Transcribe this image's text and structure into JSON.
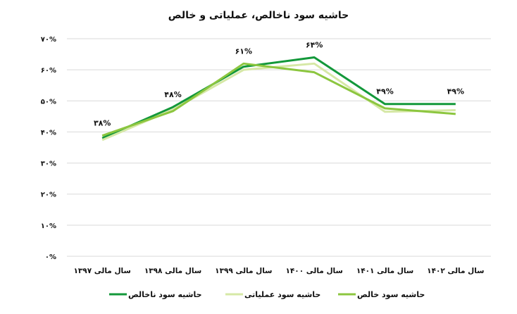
{
  "chart_data": {
    "type": "line",
    "title": "حاشیه سود ناخالص، عملیاتی و خالص",
    "categories": [
      "سال مالی ۱۳۹۷",
      "سال مالی ۱۳۹۸",
      "سال مالی ۱۳۹۹",
      "سال مالی ۱۴۰۰",
      "سال مالی ۱۴۰۱",
      "سال مالی ۱۴۰۲"
    ],
    "yticks": [
      "۰%",
      "۱۰%",
      "۲۰%",
      "۳۰%",
      "۴۰%",
      "۵۰%",
      "۶۰%",
      "۷۰%"
    ],
    "ylim": [
      0,
      70
    ],
    "grid": true,
    "legend_position": "bottom",
    "series": [
      {
        "name": "حاشیه سود ناخالص",
        "color": "#13983a",
        "values": [
          38,
          48,
          61,
          64,
          49,
          49
        ]
      },
      {
        "name": "حاشیه سود عملیاتی",
        "color": "#d6e8a6",
        "values": [
          37.4,
          47.2,
          60,
          62,
          46.5,
          47
        ]
      },
      {
        "name": "حاشیه سود خالص",
        "color": "#8cc63f",
        "values": [
          38.8,
          46.7,
          62,
          59.2,
          47.6,
          45.8
        ]
      }
    ],
    "data_labels": [
      "۳۸%",
      "۴۸%",
      "۶۱%",
      "۶۴%",
      "۴۹%",
      "۴۹%"
    ]
  }
}
